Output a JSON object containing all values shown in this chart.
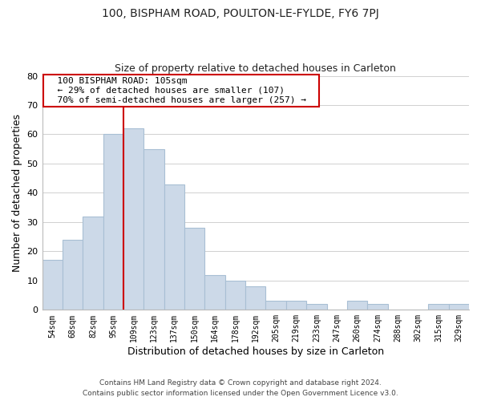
{
  "title": "100, BISPHAM ROAD, POULTON-LE-FYLDE, FY6 7PJ",
  "subtitle": "Size of property relative to detached houses in Carleton",
  "xlabel": "Distribution of detached houses by size in Carleton",
  "ylabel": "Number of detached properties",
  "bar_labels": [
    "54sqm",
    "68sqm",
    "82sqm",
    "95sqm",
    "109sqm",
    "123sqm",
    "137sqm",
    "150sqm",
    "164sqm",
    "178sqm",
    "192sqm",
    "205sqm",
    "219sqm",
    "233sqm",
    "247sqm",
    "260sqm",
    "274sqm",
    "288sqm",
    "302sqm",
    "315sqm",
    "329sqm"
  ],
  "bar_values": [
    17,
    24,
    32,
    60,
    62,
    55,
    43,
    28,
    12,
    10,
    8,
    3,
    3,
    2,
    0,
    3,
    2,
    0,
    0,
    2,
    2
  ],
  "bar_color": "#ccd9e8",
  "bar_edge_color": "#a8bfd4",
  "vline_x_idx": 4,
  "vline_color": "#cc0000",
  "ylim": [
    0,
    80
  ],
  "yticks": [
    0,
    10,
    20,
    30,
    40,
    50,
    60,
    70,
    80
  ],
  "annotation_title": "100 BISPHAM ROAD: 105sqm",
  "annotation_line1": "← 29% of detached houses are smaller (107)",
  "annotation_line2": "70% of semi-detached houses are larger (257) →",
  "footer1": "Contains HM Land Registry data © Crown copyright and database right 2024.",
  "footer2": "Contains public sector information licensed under the Open Government Licence v3.0.",
  "bg_color": "#ffffff",
  "grid_color": "#d0d0d0"
}
